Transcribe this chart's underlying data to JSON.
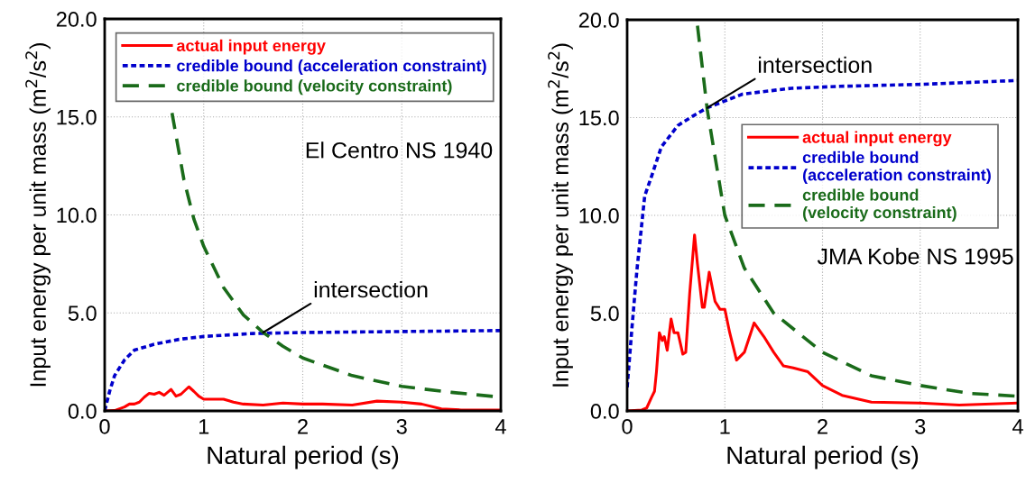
{
  "chart_data": [
    {
      "type": "line",
      "xlabel": "Natural period (s)",
      "ylabel": "Input energy per unit mass (m$^{2}$/s$^{2}$)",
      "xlim": [
        0,
        4
      ],
      "ylim": [
        0,
        20
      ],
      "xticks": [
        0,
        1,
        2,
        3,
        4
      ],
      "yticks": [
        {
          "value": 0,
          "label": "0.0"
        },
        {
          "value": 5,
          "label": "5.0"
        },
        {
          "value": 10,
          "label": "10.0"
        },
        {
          "value": 15,
          "label": "15.0"
        },
        {
          "value": 20,
          "label": "20.0"
        }
      ],
      "grid": true,
      "legend": "top",
      "annotations": [
        "El Centro NS 1940",
        {
          "text": "intersection",
          "x": 1.6,
          "y": 4.0
        }
      ],
      "series": [
        {
          "name": "actual input energy",
          "color": "#ff0000",
          "line_style": "solid",
          "x": [
            0,
            0.1,
            0.2,
            0.25,
            0.3,
            0.35,
            0.4,
            0.45,
            0.5,
            0.55,
            0.6,
            0.67,
            0.72,
            0.77,
            0.85,
            0.9,
            0.95,
            1.0,
            1.1,
            1.2,
            1.3,
            1.4,
            1.6,
            1.8,
            2.0,
            2.2,
            2.5,
            2.75,
            3.0,
            3.2,
            3.4,
            3.6,
            3.8,
            4.0
          ],
          "values": [
            0,
            0.02,
            0.2,
            0.35,
            0.35,
            0.45,
            0.7,
            0.9,
            0.85,
            0.95,
            0.8,
            1.1,
            0.75,
            0.85,
            1.23,
            1.0,
            0.75,
            0.6,
            0.6,
            0.6,
            0.45,
            0.35,
            0.3,
            0.4,
            0.35,
            0.35,
            0.3,
            0.5,
            0.45,
            0.35,
            0.1,
            0.05,
            0.05,
            0.05
          ]
        },
        {
          "name": "credible bound (acceleration constraint)",
          "color": "#0000cc",
          "line_style": "dotted",
          "x": [
            0,
            0.05,
            0.1,
            0.2,
            0.3,
            0.5,
            0.75,
            1.0,
            1.5,
            2.0,
            3.0,
            4.0
          ],
          "values": [
            0,
            1.0,
            1.8,
            2.6,
            3.1,
            3.4,
            3.65,
            3.8,
            3.95,
            4.0,
            4.05,
            4.1
          ]
        },
        {
          "name": "credible bound (velocity constraint)",
          "color": "#1a6b1a",
          "line_style": "dashed",
          "x": [
            0.68,
            0.8,
            0.9,
            1.0,
            1.2,
            1.4,
            1.6,
            1.8,
            2.0,
            2.5,
            3.0,
            3.5,
            4.0
          ],
          "values": [
            15.2,
            11.8,
            9.8,
            8.4,
            6.3,
            4.9,
            4.0,
            3.3,
            2.7,
            1.8,
            1.25,
            0.95,
            0.7
          ]
        }
      ]
    },
    {
      "type": "line",
      "xlabel": "Natural period (s)",
      "ylabel": "Input energy per unit mass (m$^{2}$/s$^{2}$)",
      "xlim": [
        0,
        4
      ],
      "ylim": [
        0,
        20
      ],
      "xticks": [
        0,
        1,
        2,
        3,
        4
      ],
      "yticks": [
        {
          "value": 0,
          "label": "0.0"
        },
        {
          "value": 5,
          "label": "5.0"
        },
        {
          "value": 10,
          "label": "10.0"
        },
        {
          "value": 15,
          "label": "15.0"
        },
        {
          "value": 20,
          "label": "20.0"
        }
      ],
      "grid": true,
      "legend": "center right",
      "annotations": [
        "JMA Kobe NS 1995",
        {
          "text": "intersection",
          "x": 0.82,
          "y": 15.5
        }
      ],
      "series": [
        {
          "name": "actual input energy",
          "color": "#ff0000",
          "line_style": "solid",
          "x": [
            0,
            0.15,
            0.2,
            0.25,
            0.28,
            0.3,
            0.33,
            0.36,
            0.38,
            0.41,
            0.45,
            0.48,
            0.52,
            0.57,
            0.6,
            0.64,
            0.69,
            0.72,
            0.77,
            0.79,
            0.84,
            0.9,
            0.95,
            1.0,
            1.05,
            1.12,
            1.2,
            1.3,
            1.4,
            1.5,
            1.6,
            1.7,
            1.85,
            2.0,
            2.2,
            2.5,
            3.0,
            3.4,
            4.0
          ],
          "values": [
            0,
            0.05,
            0.15,
            0.7,
            1.0,
            2.0,
            4.0,
            3.6,
            3.8,
            3.1,
            4.7,
            4.0,
            4.0,
            2.9,
            3.0,
            6.0,
            9.0,
            7.5,
            5.3,
            5.3,
            7.1,
            5.6,
            5.2,
            5.2,
            4.0,
            2.6,
            3.0,
            4.5,
            3.8,
            3.0,
            2.3,
            2.2,
            2.0,
            1.3,
            0.8,
            0.45,
            0.4,
            0.3,
            0.4
          ]
        },
        {
          "name": "credible bound\n(acceleration constraint)",
          "color": "#0000cc",
          "line_style": "dotted",
          "x": [
            0,
            0.05,
            0.1,
            0.18,
            0.25,
            0.35,
            0.52,
            0.68,
            0.82,
            1.18,
            1.68,
            2.18,
            3.0,
            4.0
          ],
          "values": [
            1.2,
            4.3,
            7.2,
            11.0,
            12.0,
            13.5,
            14.6,
            15.1,
            15.5,
            16.2,
            16.5,
            16.6,
            16.7,
            16.9
          ]
        },
        {
          "name": "credible bound\n(velocity constraint)",
          "color": "#1a6b1a",
          "line_style": "dashed",
          "x": [
            0.72,
            0.82,
            1.0,
            1.2,
            1.5,
            2.0,
            2.5,
            3.0,
            3.5,
            4.0
          ],
          "values": [
            19.7,
            15.4,
            10.0,
            7.3,
            5.0,
            3.0,
            1.8,
            1.3,
            0.9,
            0.75
          ]
        }
      ]
    }
  ]
}
